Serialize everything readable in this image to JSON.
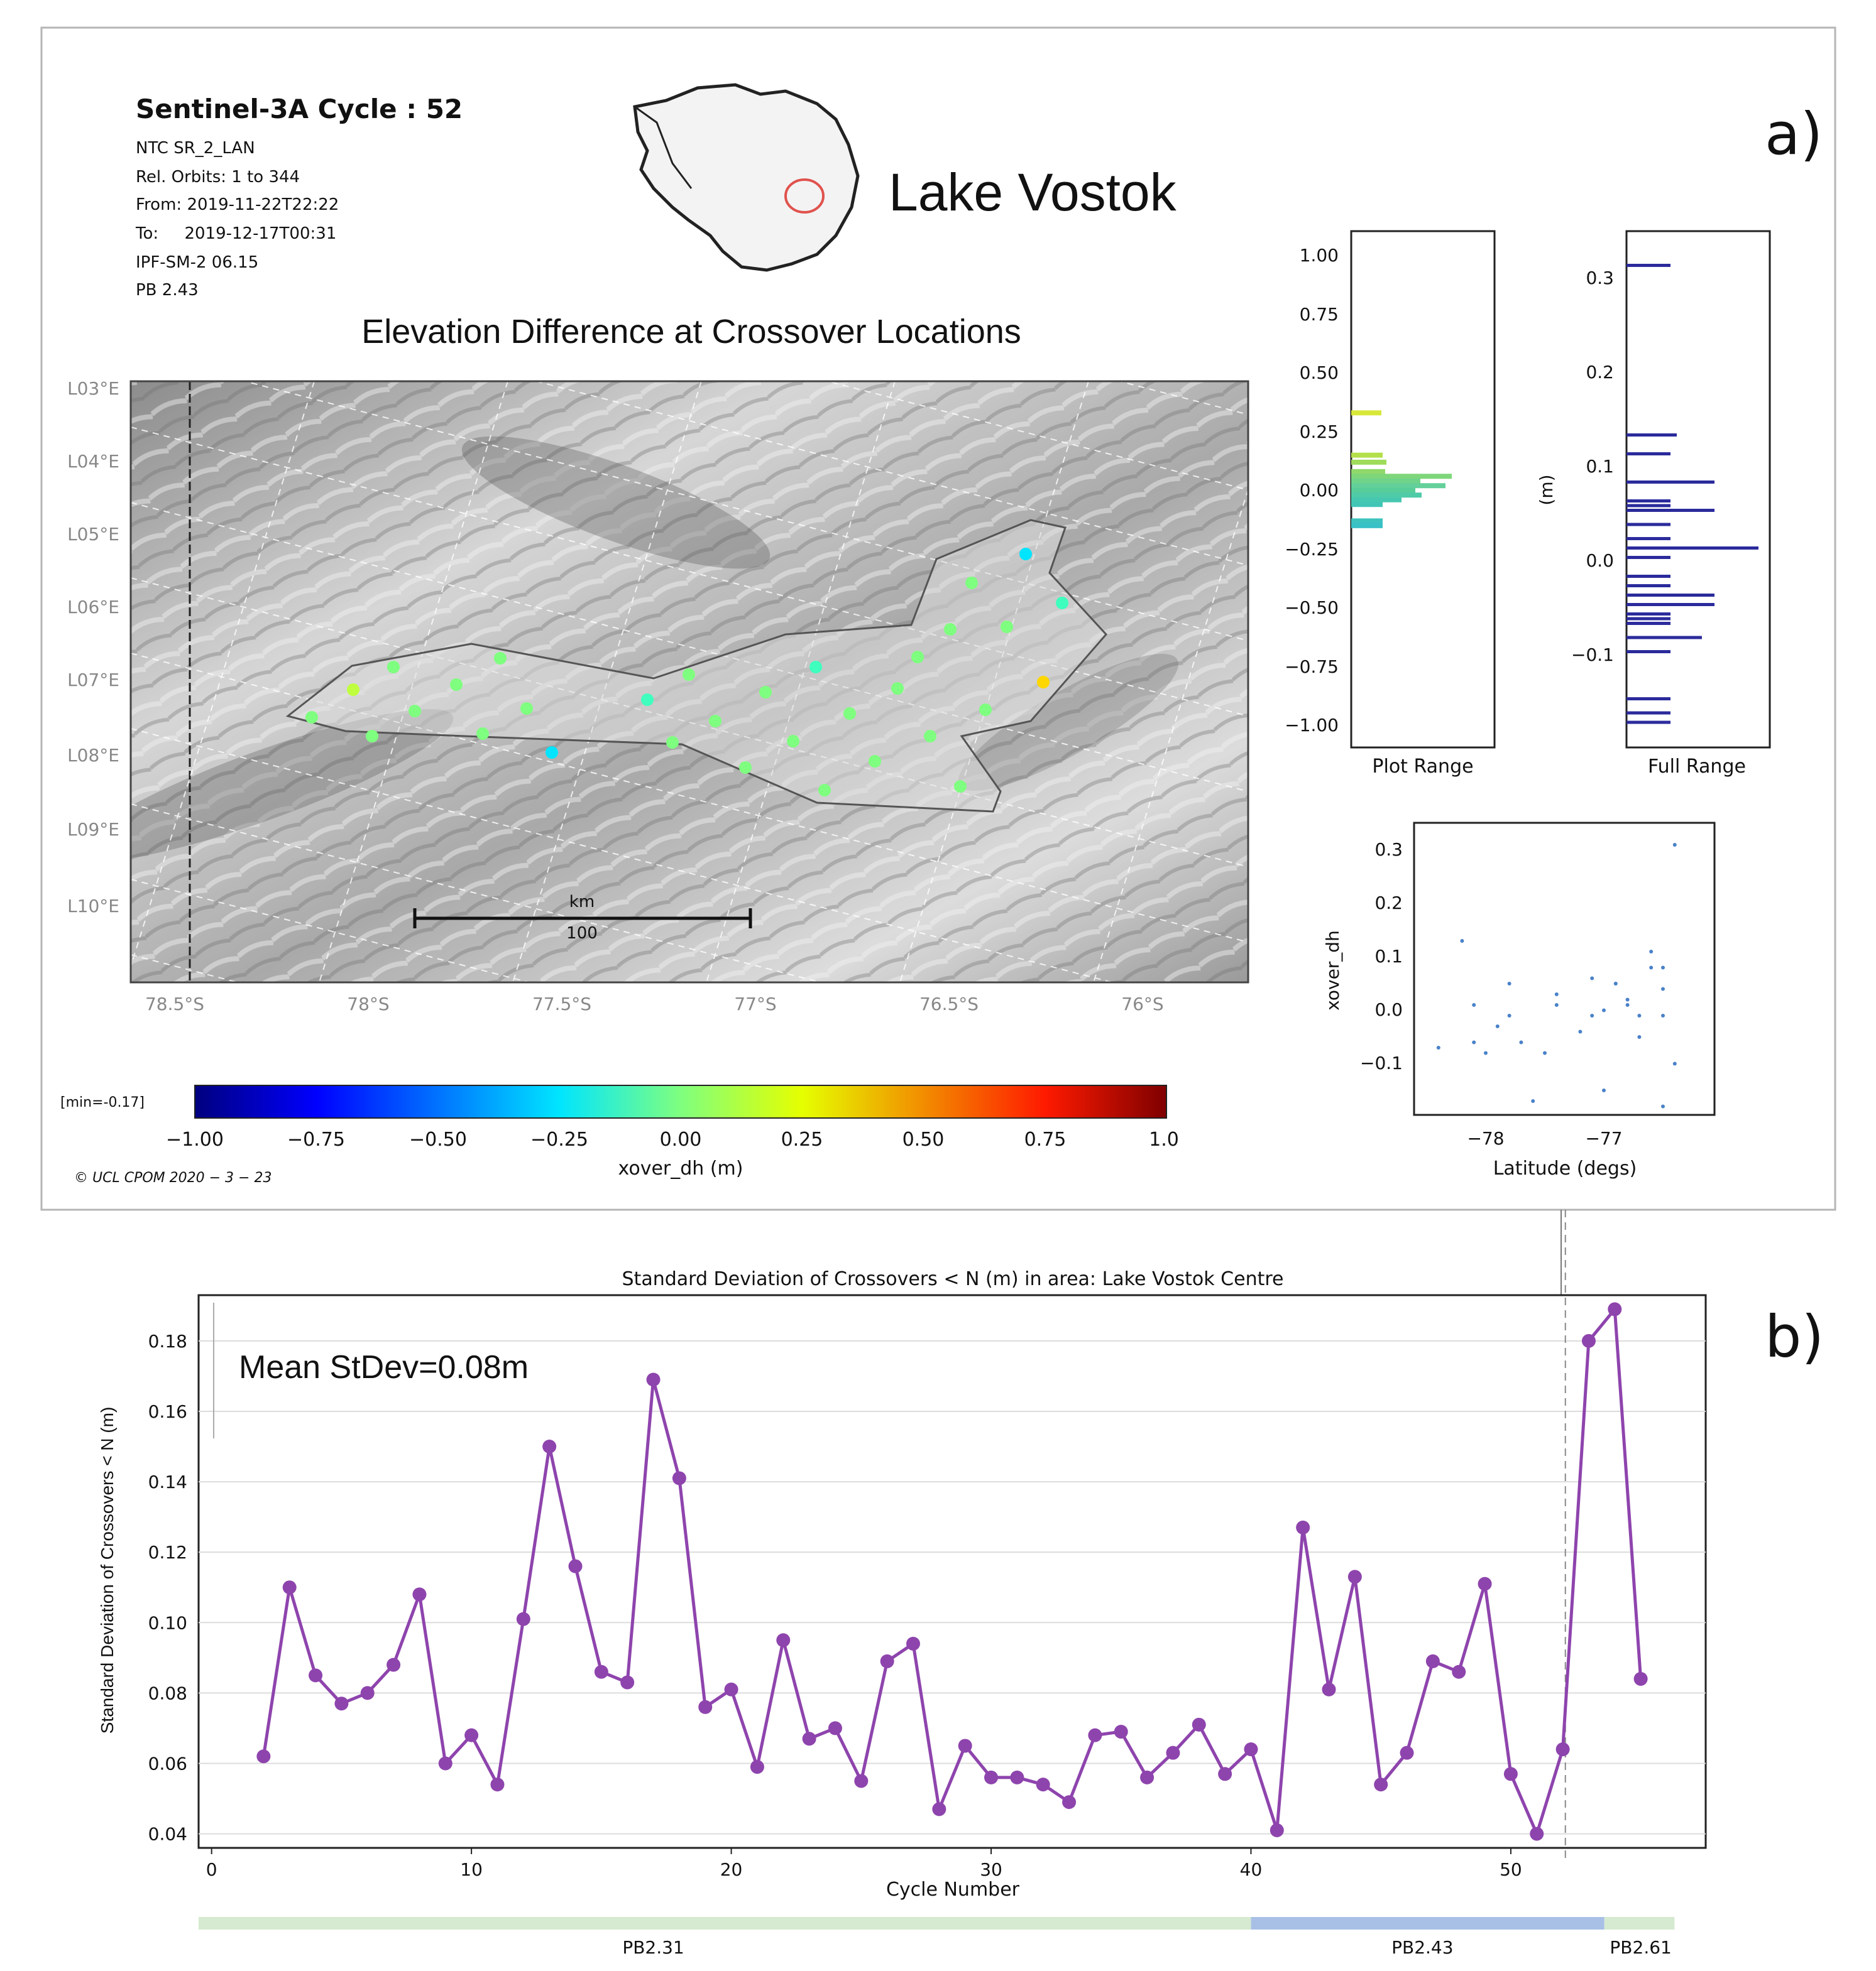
{
  "panel_a": {
    "label": "a)",
    "header": {
      "title": "Sentinel-3A Cycle : 52",
      "lines": [
        "NTC SR_2_LAN",
        "Rel. Orbits: 1 to 344",
        "From: 2019-11-22T22:22",
        "To:     2019-12-17T00:31",
        "IPF-SM-2 06.15",
        "PB 2.43"
      ]
    },
    "location_name": "Lake Vostok",
    "map": {
      "title": "Elevation Difference at Crossover Locations",
      "lon_labels": [
        "L03°E",
        "L04°E",
        "L05°E",
        "L06°E",
        "L07°E",
        "L08°E",
        "L09°E",
        "L10°E"
      ],
      "lat_labels": [
        "78.5°S",
        "78°S",
        "77.5°S",
        "77°S",
        "76.5°S",
        "76°S"
      ],
      "scalebar_unit": "km",
      "scalebar_value": "100"
    },
    "colorbar": {
      "min_note": "[min=-0.17]",
      "ticks": [
        "−1.00",
        "−0.75",
        "−0.50",
        "−0.25",
        "0.00",
        "0.25",
        "0.50",
        "0.75",
        "1.0"
      ],
      "label": "xover_dh (m)",
      "colors": [
        "#00007f",
        "#0000ff",
        "#007fff",
        "#00e5ff",
        "#7fff7f",
        "#e5ff00",
        "#ff7f00",
        "#ff1a00",
        "#7f0000"
      ]
    },
    "copyright": "© UCL CPOM 2020 − 3 − 23",
    "hist_plot_range": {
      "xlabel": "Plot Range",
      "ticks": [
        "1.00",
        "0.75",
        "0.50",
        "0.25",
        "0.00",
        "−0.25",
        "−0.50",
        "−0.75",
        "−1.00"
      ]
    },
    "hist_full_range": {
      "xlabel": "Full Range",
      "ylabel": "(m)",
      "ticks": [
        "0.3",
        "0.2",
        "0.1",
        "0.0",
        "−0.1"
      ]
    },
    "scatter": {
      "xlabel": "Latitude (degs)",
      "ylabel": "xover_dh",
      "yticks": [
        "0.3",
        "0.2",
        "0.1",
        "0.0",
        "−0.1"
      ],
      "xticks": [
        "−78",
        "−77"
      ]
    }
  },
  "panel_b": {
    "label": "b)",
    "annotation": "Mean StDev=0.08m",
    "pb_bands": [
      {
        "label": "PB2.31",
        "color": "#d5ead0"
      },
      {
        "label": "PB2.43",
        "color": "#a9c0e6"
      },
      {
        "label": "PB2.61",
        "color": "#d5ead0"
      }
    ]
  },
  "chart_data": {
    "type": "line",
    "title": "Standard Deviation of Crossovers < N (m) in area: Lake Vostok Centre",
    "xlabel": "Cycle Number",
    "ylabel": "Standard Deviation of Crossovers < N (m)",
    "xlim": [
      -0.5,
      57.5
    ],
    "ylim": [
      0.036,
      0.193
    ],
    "xticks": [
      0,
      10,
      20,
      30,
      40,
      50
    ],
    "yticks": [
      0.04,
      0.06,
      0.08,
      0.1,
      0.12,
      0.14,
      0.16,
      0.18
    ],
    "ytick_labels": [
      "0.04",
      "0.06",
      "0.08",
      "0.10",
      "0.12",
      "0.14",
      "0.16",
      "0.18"
    ],
    "vline_x": 52.1,
    "line_color": "#8e44ad",
    "x": [
      2,
      3,
      4,
      5,
      6,
      7,
      8,
      9,
      10,
      11,
      12,
      13,
      14,
      15,
      16,
      17,
      18,
      19,
      20,
      21,
      22,
      23,
      24,
      25,
      26,
      27,
      28,
      29,
      30,
      31,
      32,
      33,
      34,
      35,
      36,
      37,
      38,
      39,
      40,
      41,
      42,
      43,
      44,
      45,
      46,
      47,
      48,
      49,
      50,
      51,
      52,
      53,
      54,
      55
    ],
    "values": [
      0.062,
      0.11,
      0.085,
      0.077,
      0.08,
      0.088,
      0.108,
      0.06,
      0.068,
      0.054,
      0.101,
      0.15,
      0.116,
      0.086,
      0.083,
      0.169,
      0.141,
      0.076,
      0.081,
      0.059,
      0.095,
      0.067,
      0.07,
      0.055,
      0.089,
      0.094,
      0.047,
      0.065,
      0.056,
      0.056,
      0.054,
      0.049,
      0.068,
      0.069,
      0.056,
      0.063,
      0.071,
      0.057,
      0.064,
      0.041,
      0.127,
      0.081,
      0.113,
      0.054,
      0.063,
      0.089,
      0.086,
      0.111,
      0.057,
      0.04,
      0.064,
      0.18,
      0.189,
      0.084
    ]
  }
}
